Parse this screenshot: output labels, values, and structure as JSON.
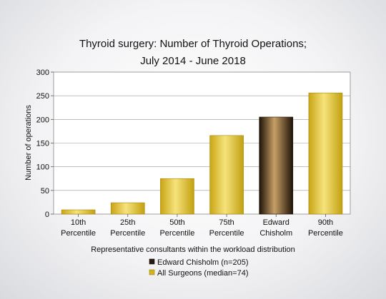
{
  "chart_data": {
    "type": "bar",
    "title": "Thyroid surgery: Number of Thyroid Operations;",
    "subtitle": "July 2014 - June 2018",
    "xlabel": "Representative consultants within the workload distribution",
    "ylabel": "Number of operations",
    "ylim": [
      0,
      300
    ],
    "yticks": [
      0,
      50,
      100,
      150,
      200,
      250,
      300
    ],
    "grid": true,
    "categories": [
      [
        "10th",
        "Percentile"
      ],
      [
        "25th",
        "Percentile"
      ],
      [
        "50th",
        "Percentile"
      ],
      [
        "75th",
        "Percentile"
      ],
      [
        "Edward",
        "Chisholm"
      ],
      [
        "90th",
        "Percentile"
      ]
    ],
    "values": [
      9,
      24,
      75,
      166,
      205,
      256
    ],
    "highlight_index": 4,
    "colors": {
      "surgeons": "#d4b21e",
      "surgeons_light": "#f5e27a",
      "surgeons_dark": "#b8960c",
      "consultant": "#2a1a0e",
      "consultant_light": "#c9a26a",
      "grid": "#999999",
      "plot_bg": "#ffffff"
    },
    "legend": {
      "placement": "bottom-center",
      "entries": [
        {
          "label": "Edward Chisholm (n=205)",
          "color_key": "consultant"
        },
        {
          "label": "All Surgeons (median=74)",
          "color_key": "surgeons"
        }
      ]
    }
  }
}
